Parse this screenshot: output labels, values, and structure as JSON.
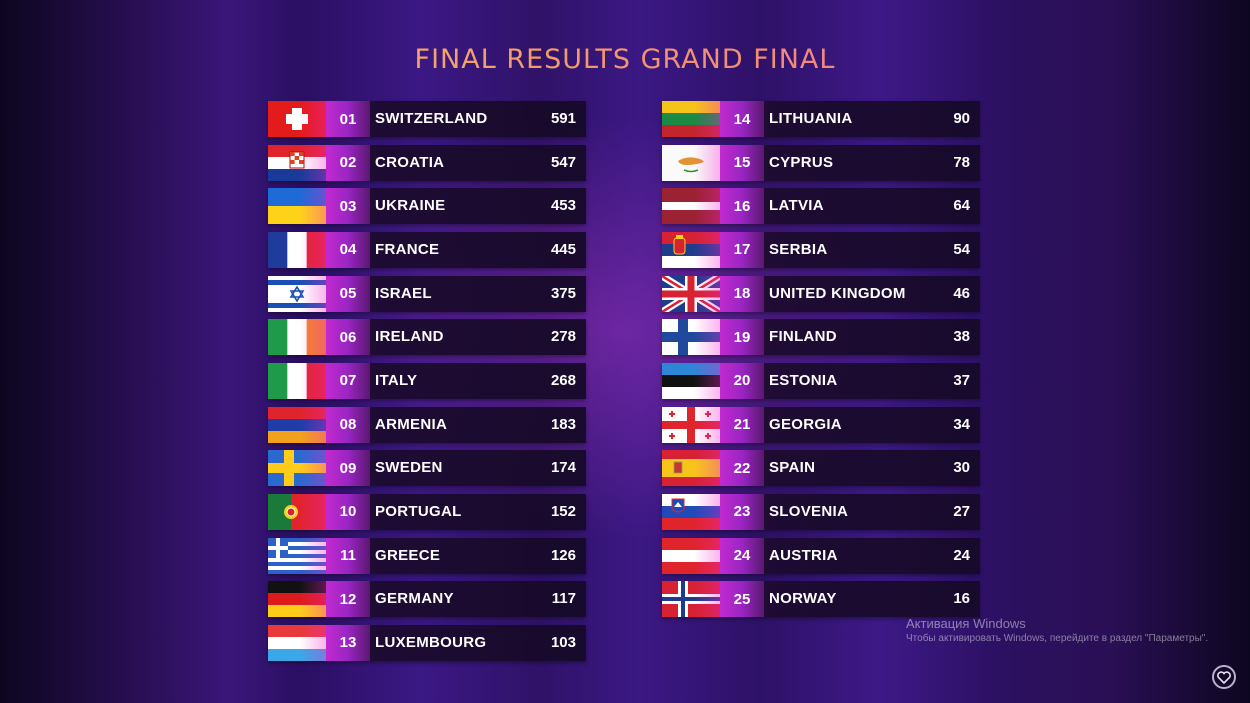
{
  "title": "FINAL RESULTS GRAND FINAL",
  "left": [
    {
      "pos": "01",
      "country": "SWITZERLAND",
      "points": "591",
      "flag": "switzerland-flag-icon"
    },
    {
      "pos": "02",
      "country": "CROATIA",
      "points": "547",
      "flag": "croatia-flag-icon"
    },
    {
      "pos": "03",
      "country": "UKRAINE",
      "points": "453",
      "flag": "ukraine-flag-icon"
    },
    {
      "pos": "04",
      "country": "FRANCE",
      "points": "445",
      "flag": "france-flag-icon"
    },
    {
      "pos": "05",
      "country": "ISRAEL",
      "points": "375",
      "flag": "israel-flag-icon"
    },
    {
      "pos": "06",
      "country": "IRELAND",
      "points": "278",
      "flag": "ireland-flag-icon"
    },
    {
      "pos": "07",
      "country": "ITALY",
      "points": "268",
      "flag": "italy-flag-icon"
    },
    {
      "pos": "08",
      "country": "ARMENIA",
      "points": "183",
      "flag": "armenia-flag-icon"
    },
    {
      "pos": "09",
      "country": "SWEDEN",
      "points": "174",
      "flag": "sweden-flag-icon"
    },
    {
      "pos": "10",
      "country": "PORTUGAL",
      "points": "152",
      "flag": "portugal-flag-icon"
    },
    {
      "pos": "11",
      "country": "GREECE",
      "points": "126",
      "flag": "greece-flag-icon"
    },
    {
      "pos": "12",
      "country": "GERMANY",
      "points": "117",
      "flag": "germany-flag-icon"
    },
    {
      "pos": "13",
      "country": "LUXEMBOURG",
      "points": "103",
      "flag": "luxembourg-flag-icon"
    }
  ],
  "right": [
    {
      "pos": "14",
      "country": "LITHUANIA",
      "points": "90",
      "flag": "lithuania-flag-icon"
    },
    {
      "pos": "15",
      "country": "CYPRUS",
      "points": "78",
      "flag": "cyprus-flag-icon"
    },
    {
      "pos": "16",
      "country": "LATVIA",
      "points": "64",
      "flag": "latvia-flag-icon"
    },
    {
      "pos": "17",
      "country": "SERBIA",
      "points": "54",
      "flag": "serbia-flag-icon"
    },
    {
      "pos": "18",
      "country": "UNITED KINGDOM",
      "points": "46",
      "flag": "united-kingdom-flag-icon"
    },
    {
      "pos": "19",
      "country": "FINLAND",
      "points": "38",
      "flag": "finland-flag-icon"
    },
    {
      "pos": "20",
      "country": "ESTONIA",
      "points": "37",
      "flag": "estonia-flag-icon"
    },
    {
      "pos": "21",
      "country": "GEORGIA",
      "points": "34",
      "flag": "georgia-flag-icon"
    },
    {
      "pos": "22",
      "country": "SPAIN",
      "points": "30",
      "flag": "spain-flag-icon"
    },
    {
      "pos": "23",
      "country": "SLOVENIA",
      "points": "27",
      "flag": "slovenia-flag-icon"
    },
    {
      "pos": "24",
      "country": "AUSTRIA",
      "points": "24",
      "flag": "austria-flag-icon"
    },
    {
      "pos": "25",
      "country": "NORWAY",
      "points": "16",
      "flag": "norway-flag-icon"
    }
  ],
  "watermark": {
    "title": "Активация Windows",
    "subtitle": "Чтобы активировать Windows, перейдите в раздел \"Параметры\"."
  },
  "colors": {
    "title_gradient_start": "#f3c65a",
    "title_gradient_end": "#f06aa0",
    "position_badge": "#c22ad0",
    "background": "#2a0f55"
  },
  "icons": {
    "corner": "heart-icon"
  }
}
